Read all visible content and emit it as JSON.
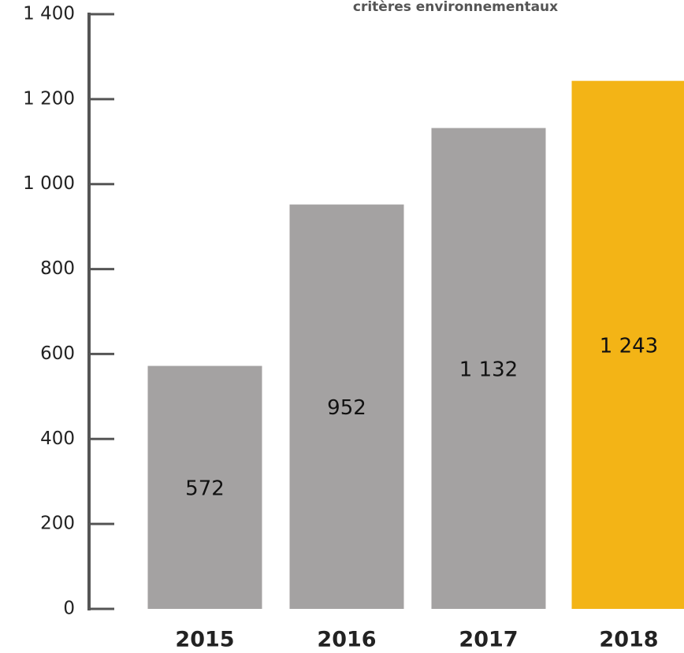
{
  "chart_data": {
    "type": "bar",
    "title": "critères environnementaux",
    "categories": [
      "2015",
      "2016",
      "2017",
      "2018"
    ],
    "values": [
      572,
      952,
      1132,
      1243
    ],
    "value_labels": [
      "572",
      "952",
      "1 132",
      "1 243"
    ],
    "colors": [
      "#a4a2a2",
      "#a4a2a2",
      "#a4a2a2",
      "#f3b416"
    ],
    "ylim": [
      0,
      1400
    ],
    "yticks": [
      0,
      200,
      400,
      600,
      800,
      {
        "value": 1000,
        "label": "1 000"
      },
      {
        "value": 1200,
        "label": "1 200"
      },
      {
        "value": 1400,
        "label": "1 400"
      }
    ],
    "grid": false
  }
}
